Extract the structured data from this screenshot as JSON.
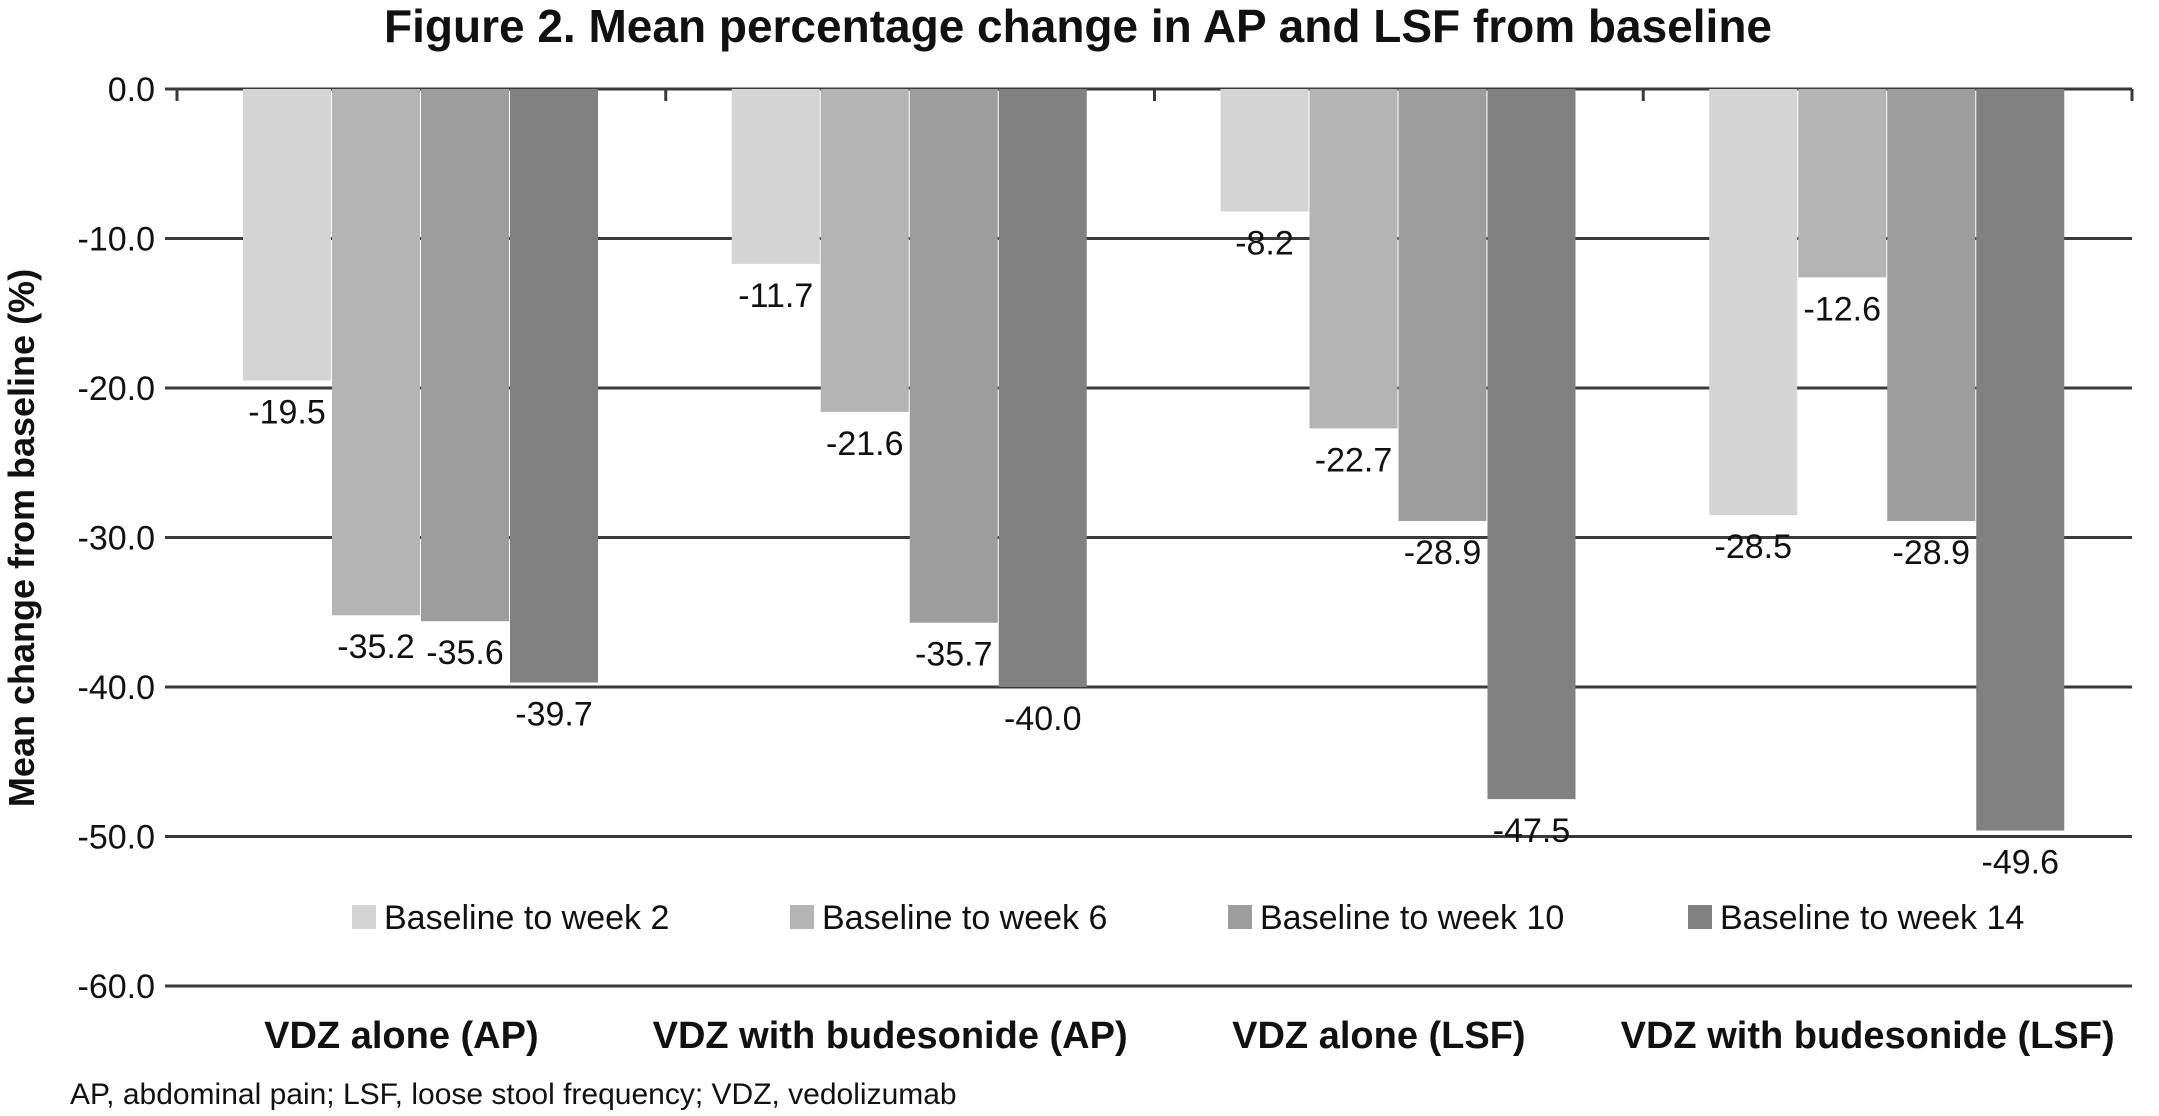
{
  "chart_data": {
    "type": "bar",
    "title": "Figure 2. Mean percentage change in AP and LSF from baseline",
    "ylabel": "Mean change from baseline (%)",
    "xlabel": "",
    "ylim": [
      -60,
      0
    ],
    "yticks": [
      0,
      -10,
      -20,
      -30,
      -40,
      -50,
      -60
    ],
    "ytick_labels": [
      "0.0",
      "-10.0",
      "-20.0",
      "-30.0",
      "-40.0",
      "-50.0",
      "-60.0"
    ],
    "grid": true,
    "legend_position": "bottom",
    "categories": [
      "VDZ alone (AP)",
      "VDZ with budesonide (AP)",
      "VDZ alone (LSF)",
      "VDZ with budesonide (LSF)"
    ],
    "series": [
      {
        "name": "Baseline to week 2",
        "color": "#d4d4d4",
        "values": [
          -19.5,
          -11.7,
          -8.2,
          -28.5
        ],
        "labels": [
          "-19.5",
          "-11.7",
          "-8.2",
          "-28.5"
        ]
      },
      {
        "name": "Baseline to week 6",
        "color": "#b4b4b4",
        "values": [
          -35.2,
          -21.6,
          -22.7,
          -12.6
        ],
        "labels": [
          "-35.2",
          "-21.6",
          "-22.7",
          "-12.6"
        ]
      },
      {
        "name": "Baseline to week 10",
        "color": "#9d9d9d",
        "values": [
          -35.6,
          -35.7,
          -28.9,
          -28.9
        ],
        "labels": [
          "-35.6",
          "-35.7",
          "-28.9",
          "-28.9"
        ]
      },
      {
        "name": "Baseline to week 14",
        "color": "#818181",
        "values": [
          -39.7,
          -40.0,
          -47.5,
          -49.6
        ],
        "labels": [
          "-39.7",
          "-40.0",
          "-47.5",
          "-49.6"
        ]
      }
    ],
    "footnote": "AP, abdominal pain; LSF, loose stool frequency; VDZ, vedolizumab"
  }
}
